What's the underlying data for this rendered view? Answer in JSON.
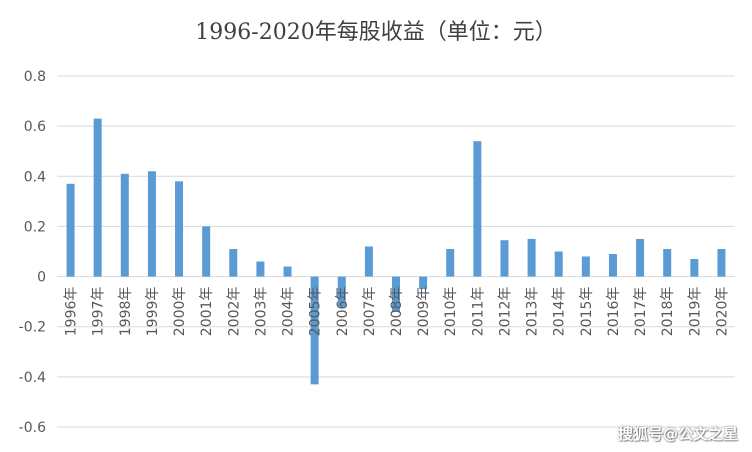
{
  "chart_data": {
    "type": "bar",
    "title": "1996-2020年每股收益（单位：元）",
    "xlabel": "",
    "ylabel": "",
    "ylim": [
      -0.6,
      0.8
    ],
    "yticks": [
      "0.8",
      "0.6",
      "0.4",
      "0.2",
      "0",
      "-0.2",
      "-0.4",
      "-0.6"
    ],
    "ytick_values": [
      0.8,
      0.6,
      0.4,
      0.2,
      0,
      -0.2,
      -0.4,
      -0.6
    ],
    "grid": true,
    "legend": "none",
    "bar_color": "#5b9bd5",
    "categories": [
      "1996年",
      "1997年",
      "1998年",
      "1999年",
      "2000年",
      "2001年",
      "2002年",
      "2003年",
      "2004年",
      "2005年",
      "2006年",
      "2007年",
      "2008年",
      "2009年",
      "2010年",
      "2011年",
      "2012年",
      "2013年",
      "2014年",
      "2015年",
      "2016年",
      "2017年",
      "2018年",
      "2019年",
      "2020年"
    ],
    "values": [
      0.37,
      0.63,
      0.41,
      0.42,
      0.38,
      0.2,
      0.11,
      0.06,
      0.04,
      -0.43,
      -0.12,
      0.12,
      -0.14,
      -0.05,
      0.11,
      0.54,
      0.145,
      0.15,
      0.1,
      0.08,
      0.09,
      0.15,
      0.11,
      0.07,
      0.11
    ]
  },
  "watermark": "搜狐号@公文之星"
}
